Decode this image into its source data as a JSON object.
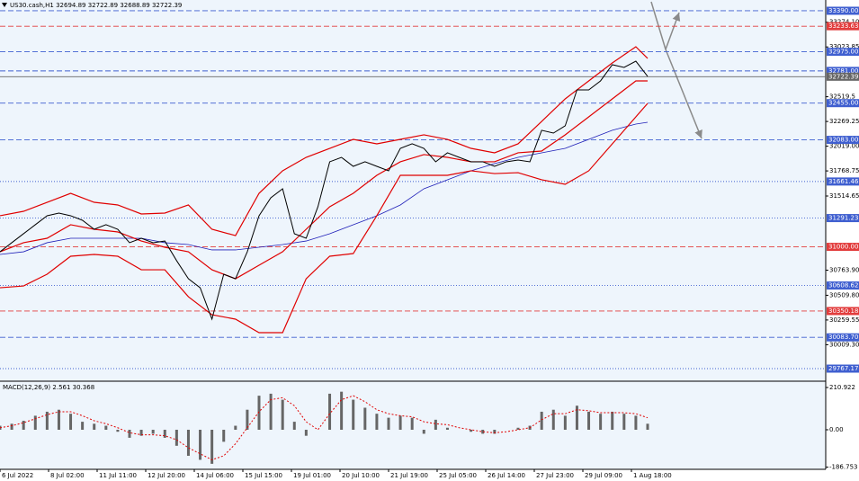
{
  "chart_data": [
    {
      "type": "line",
      "title": "US30.cash,H1  32694.89 32722.89 32688.89 32722.39",
      "xlim": [
        0,
        561
      ],
      "ylim": [
        29658,
        33499
      ],
      "yticks": [
        {
          "value": 33274.1,
          "label": "33274.10"
        },
        33023.85,
        32519.5,
        32269.25,
        {
          "value": 32019,
          "label": "32019.00"
        },
        31768.75,
        31514.65,
        {
          "value": 30763.9,
          "label": "30763.90"
        },
        {
          "value": 30509.8,
          "label": "30509.80"
        },
        30259.55,
        {
          "value": 30009.3,
          "label": "30009.30"
        }
      ],
      "levels": [
        {
          "value": 33390,
          "label": "33390.00",
          "color": "#3f5fd0",
          "style": "dash"
        },
        {
          "value": 33233.63,
          "color": "#e23c3c",
          "style": "dash"
        },
        {
          "value": 32975,
          "label": "32975.00",
          "color": "#3f5fd0",
          "style": "dash"
        },
        {
          "value": 32781,
          "label": "32781.00",
          "color": "#3f5fd0",
          "style": "dash"
        },
        {
          "value": 32722.39,
          "color": "#666666",
          "style": "solid"
        },
        {
          "value": 32455,
          "label": "32455.00",
          "color": "#3f5fd0",
          "style": "dash"
        },
        {
          "value": 32083,
          "label": "32083.00",
          "color": "#3f5fd0",
          "style": "dash"
        },
        {
          "value": 31661.46,
          "color": "#3f5fd0",
          "style": "dot"
        },
        {
          "value": 31291.23,
          "color": "#3f5fd0",
          "style": "dot"
        },
        {
          "value": 31000,
          "label": "31000.00",
          "color": "#e23c3c",
          "style": "dash"
        },
        {
          "value": 30608.62,
          "color": "#3f5fd0",
          "style": "dot"
        },
        {
          "value": 30350.18,
          "color": "#e23c3c",
          "style": "dash"
        },
        {
          "value": 30083.7,
          "label": "30083.70",
          "color": "#3f5fd0",
          "style": "dash"
        },
        {
          "value": 29767.17,
          "color": "#3f5fd0",
          "style": "dot"
        }
      ],
      "series": [
        {
          "color": "#1f1fb8",
          "width": 0.8,
          "x": [
            0,
            16,
            32,
            48,
            64,
            80,
            96,
            112,
            128,
            144,
            160,
            176,
            192,
            208,
            224,
            240,
            256,
            272,
            288,
            304,
            320,
            336,
            352,
            368,
            384,
            400,
            416,
            432,
            440
          ],
          "values": [
            30923,
            30950,
            31042,
            31087,
            31087,
            31087,
            31087,
            31042,
            31023,
            30969,
            30969,
            30996,
            31023,
            31059,
            31133,
            31224,
            31315,
            31424,
            31588,
            31679,
            31770,
            31842,
            31906,
            31952,
            31997,
            32088,
            32180,
            32243,
            32261
          ]
        },
        {
          "color": "#e00000",
          "width": 1.2,
          "x": [
            0,
            16,
            32,
            48,
            64,
            80,
            96,
            112,
            128,
            144,
            160,
            176,
            192,
            208,
            224,
            240,
            256,
            272,
            288,
            304,
            320,
            336,
            352,
            368,
            384,
            400,
            416,
            432,
            440
          ],
          "values": [
            31315,
            31360,
            31451,
            31542,
            31451,
            31424,
            31333,
            31342,
            31424,
            31178,
            31114,
            31542,
            31770,
            31906,
            31997,
            32088,
            32043,
            32088,
            32134,
            32088,
            31997,
            31952,
            32043,
            32270,
            32498,
            32680,
            32862,
            33026,
            32908
          ]
        },
        {
          "color": "#e00000",
          "width": 1.2,
          "x": [
            0,
            16,
            32,
            48,
            64,
            80,
            96,
            112,
            128,
            144,
            160,
            176,
            192,
            208,
            224,
            240,
            256,
            272,
            288,
            304,
            320,
            336,
            352,
            368,
            384,
            400,
            416,
            432,
            440
          ],
          "values": [
            30950,
            31042,
            31087,
            31224,
            31178,
            31151,
            31059,
            30996,
            30950,
            30768,
            30677,
            30814,
            30950,
            31178,
            31406,
            31542,
            31724,
            31861,
            31934,
            31906,
            31861,
            31861,
            31952,
            31970,
            32134,
            32316,
            32498,
            32680,
            32680
          ]
        },
        {
          "color": "#e00000",
          "width": 1.2,
          "x": [
            0,
            16,
            32,
            48,
            64,
            80,
            96,
            112,
            128,
            144,
            160,
            176,
            192,
            208,
            224,
            240,
            256,
            272,
            288,
            304,
            320,
            336,
            352,
            368,
            384,
            400,
            416,
            432,
            440
          ],
          "values": [
            30586,
            30604,
            30723,
            30905,
            30923,
            30905,
            30768,
            30768,
            30495,
            30313,
            30268,
            30131,
            30131,
            30677,
            30905,
            30932,
            31315,
            31724,
            31724,
            31724,
            31770,
            31742,
            31751,
            31679,
            31633,
            31770,
            32043,
            32316,
            32452
          ]
        },
        {
          "color": "#000000",
          "width": 1,
          "x": [
            0,
            8,
            16,
            24,
            32,
            40,
            48,
            56,
            64,
            72,
            80,
            88,
            96,
            104,
            112,
            120,
            128,
            136,
            144,
            152,
            160,
            168,
            176,
            184,
            192,
            200,
            208,
            216,
            224,
            232,
            240,
            248,
            256,
            264,
            272,
            280,
            288,
            296,
            304,
            312,
            320,
            328,
            336,
            344,
            352,
            360,
            368,
            376,
            384,
            392,
            400,
            408,
            416,
            424,
            432,
            440
          ],
          "values": [
            30950,
            31042,
            31133,
            31224,
            31315,
            31342,
            31315,
            31269,
            31178,
            31224,
            31178,
            31042,
            31087,
            31042,
            31059,
            30860,
            30677,
            30586,
            30268,
            30723,
            30677,
            30950,
            31315,
            31497,
            31588,
            31133,
            31087,
            31406,
            31861,
            31906,
            31815,
            31861,
            31815,
            31770,
            31997,
            32043,
            31997,
            31861,
            31952,
            31906,
            31861,
            31861,
            31815,
            31861,
            31879,
            31861,
            32180,
            32152,
            32225,
            32589,
            32589,
            32680,
            32844,
            32817,
            32880,
            32726
          ]
        }
      ]
    },
    {
      "type": "bar",
      "title": "MACD(12,26,9) 2.561 30.368",
      "xlim": [
        0,
        561
      ],
      "ylim": [
        -197.5,
        237.9
      ],
      "yticks": [
        210.922,
        {
          "value": 0,
          "label": "0.00"
        },
        -186.753
      ],
      "xticks": [
        {
          "value": 0,
          "label": "6 Jul 2022"
        },
        {
          "value": 33,
          "label": "8 Jul 02:00"
        },
        {
          "value": 66,
          "label": "11 Jul 11:00"
        },
        {
          "value": 99,
          "label": "12 Jul 20:00"
        },
        {
          "value": 132,
          "label": "14 Jul 06:00"
        },
        {
          "value": 165,
          "label": "15 Jul 15:00"
        },
        {
          "value": 198,
          "label": "19 Jul 01:00"
        },
        {
          "value": 231,
          "label": "20 Jul 10:00"
        },
        {
          "value": 264,
          "label": "21 Jul 19:00"
        },
        {
          "value": 297,
          "label": "25 Jul 05:00"
        },
        {
          "value": 330,
          "label": "26 Jul 14:00"
        },
        {
          "value": 363,
          "label": "27 Jul 23:00"
        },
        {
          "value": 396,
          "label": "29 Jul 09:00"
        },
        {
          "value": 429,
          "label": "1 Aug 18:00"
        }
      ],
      "series": [
        {
          "kind": "bar",
          "color": "#666666",
          "x": [
            0,
            8,
            16,
            24,
            32,
            40,
            48,
            56,
            64,
            72,
            80,
            88,
            96,
            104,
            112,
            120,
            128,
            136,
            144,
            152,
            160,
            168,
            176,
            184,
            192,
            200,
            208,
            216,
            224,
            232,
            240,
            248,
            256,
            264,
            272,
            280,
            288,
            296,
            304,
            312,
            320,
            328,
            336,
            344,
            352,
            360,
            368,
            376,
            384,
            392,
            400,
            408,
            416,
            424,
            432,
            440
          ],
          "values": [
            20,
            30,
            45,
            70,
            90,
            100,
            80,
            40,
            30,
            20,
            -10,
            -40,
            -30,
            -20,
            -40,
            -80,
            -130,
            -150,
            -170,
            -60,
            20,
            100,
            170,
            180,
            150,
            40,
            -30,
            0,
            180,
            190,
            150,
            110,
            80,
            60,
            70,
            60,
            -20,
            50,
            10,
            0,
            -10,
            -20,
            -20,
            0,
            10,
            20,
            90,
            100,
            70,
            120,
            90,
            80,
            90,
            80,
            70,
            30
          ]
        },
        {
          "kind": "line",
          "color": "#e00000",
          "x": [
            0,
            8,
            16,
            24,
            32,
            40,
            48,
            56,
            64,
            72,
            80,
            88,
            96,
            104,
            112,
            120,
            128,
            136,
            144,
            152,
            160,
            168,
            176,
            184,
            192,
            200,
            208,
            216,
            224,
            232,
            240,
            248,
            256,
            264,
            272,
            280,
            288,
            296,
            304,
            312,
            320,
            328,
            336,
            344,
            352,
            360,
            368,
            376,
            384,
            392,
            400,
            408,
            416,
            424,
            432,
            440
          ],
          "values": [
            10,
            20,
            35,
            55,
            75,
            90,
            90,
            70,
            45,
            30,
            10,
            -15,
            -25,
            -25,
            -30,
            -50,
            -90,
            -120,
            -150,
            -130,
            -70,
            10,
            90,
            150,
            160,
            120,
            40,
            0,
            80,
            150,
            170,
            140,
            100,
            80,
            70,
            65,
            40,
            30,
            25,
            10,
            0,
            -10,
            -15,
            -10,
            0,
            10,
            50,
            80,
            80,
            100,
            95,
            85,
            85,
            85,
            80,
            60
          ]
        }
      ]
    }
  ]
}
